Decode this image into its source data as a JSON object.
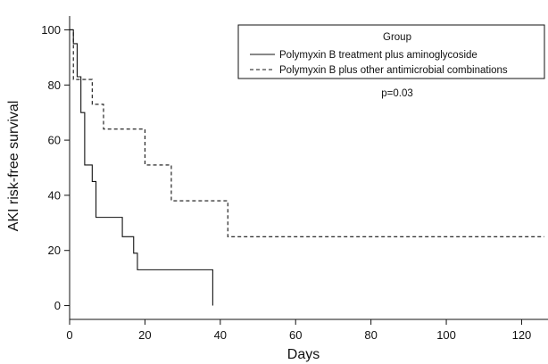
{
  "chart_data": {
    "type": "line",
    "step": true,
    "xlabel": "Days",
    "ylabel": "AKI risk-free survival",
    "xlim": [
      0,
      127
    ],
    "ylim": [
      -5,
      105
    ],
    "xticks": [
      0,
      20,
      40,
      60,
      80,
      100,
      120
    ],
    "yticks": [
      0,
      20,
      40,
      60,
      80,
      100
    ],
    "grid": false,
    "legend": {
      "title": "Group",
      "position": "top-right"
    },
    "annotations": [
      {
        "text": "p=0.03"
      }
    ],
    "series": [
      {
        "name": "Polymyxin B treatment plus aminoglycoside",
        "style": "solid",
        "color": "#111111",
        "x": [
          0,
          1,
          2,
          3,
          4,
          6,
          7,
          14,
          17,
          18,
          20,
          38
        ],
        "y": [
          100,
          95,
          83,
          70,
          51,
          45,
          32,
          25,
          19,
          13,
          13,
          0
        ]
      },
      {
        "name": "Polymyxin B plus other antimicrobial combinations",
        "style": "dashed",
        "color": "#111111",
        "x": [
          0,
          1,
          6,
          9,
          20,
          27,
          42,
          126
        ],
        "y": [
          100,
          82,
          73,
          64,
          51,
          38,
          25,
          25
        ]
      }
    ]
  }
}
